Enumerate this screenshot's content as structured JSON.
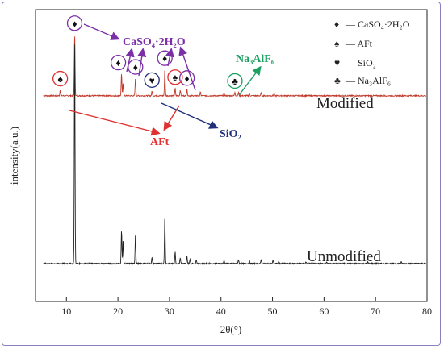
{
  "chart_data": {
    "type": "line",
    "xlabel": "2θ(°)",
    "ylabel": "intensity(a.u.)",
    "xlim": [
      4,
      80
    ],
    "x_ticks": [
      10,
      20,
      30,
      40,
      50,
      60,
      70,
      80
    ],
    "grid": false,
    "legend_position": "top-right",
    "series": [
      {
        "name": "Modified",
        "color": "#c0392b",
        "baseline": 0.705,
        "peaks": [
          {
            "x": 8.8,
            "h": 0.02
          },
          {
            "x": 11.6,
            "h": 0.21
          },
          {
            "x": 20.7,
            "h": 0.075
          },
          {
            "x": 21.0,
            "h": 0.045
          },
          {
            "x": 23.4,
            "h": 0.06
          },
          {
            "x": 26.6,
            "h": 0.015
          },
          {
            "x": 29.1,
            "h": 0.09
          },
          {
            "x": 31.1,
            "h": 0.025
          },
          {
            "x": 32.1,
            "h": 0.02
          },
          {
            "x": 33.4,
            "h": 0.022
          },
          {
            "x": 36.0,
            "h": 0.012
          },
          {
            "x": 40.6,
            "h": 0.01
          },
          {
            "x": 42.7,
            "h": 0.012
          },
          {
            "x": 43.4,
            "h": 0.012
          },
          {
            "x": 45.5,
            "h": 0.008
          },
          {
            "x": 47.8,
            "h": 0.01
          },
          {
            "x": 50.3,
            "h": 0.008
          }
        ]
      },
      {
        "name": "Unmodified",
        "color": "#222222",
        "baseline": 0.13,
        "peaks": [
          {
            "x": 11.6,
            "h": 0.78
          },
          {
            "x": 20.7,
            "h": 0.115
          },
          {
            "x": 21.0,
            "h": 0.08
          },
          {
            "x": 23.4,
            "h": 0.1
          },
          {
            "x": 26.6,
            "h": 0.02
          },
          {
            "x": 29.1,
            "h": 0.16
          },
          {
            "x": 31.1,
            "h": 0.04
          },
          {
            "x": 32.1,
            "h": 0.02
          },
          {
            "x": 33.4,
            "h": 0.025
          },
          {
            "x": 34.0,
            "h": 0.015
          },
          {
            "x": 35.2,
            "h": 0.015
          },
          {
            "x": 40.6,
            "h": 0.012
          },
          {
            "x": 43.4,
            "h": 0.014
          },
          {
            "x": 45.5,
            "h": 0.01
          },
          {
            "x": 47.8,
            "h": 0.014
          },
          {
            "x": 50.1,
            "h": 0.012
          },
          {
            "x": 51.2,
            "h": 0.008
          },
          {
            "x": 56.5,
            "h": 0.006
          },
          {
            "x": 60.5,
            "h": 0.006
          },
          {
            "x": 68.5,
            "h": 0.005
          },
          {
            "x": 75.0,
            "h": 0.005
          }
        ]
      }
    ],
    "curve_labels": {
      "modified": "Modified",
      "unmodified": "Unmodified"
    },
    "legend": [
      {
        "symbol": "♦",
        "label": "— CaSO₄·2H₂O"
      },
      {
        "symbol": "♠",
        "label": "— AFt"
      },
      {
        "symbol": "♥",
        "label": "— SiO₂"
      },
      {
        "symbol": "♣",
        "label": "— Na₃AlF₆"
      }
    ],
    "annotations": [
      {
        "label": "CaSO₄·2H₂O",
        "color": "#7b2fa6"
      },
      {
        "label": "AFt",
        "color": "#e03030"
      },
      {
        "label": "SiO₂",
        "color": "#1f2f7a"
      },
      {
        "label": "Na₃AlF₆",
        "color": "#1aa060"
      }
    ],
    "peak_markers": [
      {
        "symbol": "♦",
        "x": 11.6
      },
      {
        "symbol": "♦",
        "x": 20.7
      },
      {
        "symbol": "♦",
        "x": 23.4
      },
      {
        "symbol": "♦",
        "x": 29.1
      },
      {
        "symbol": "♦",
        "x": 33.4
      },
      {
        "symbol": "♠",
        "x": 8.8
      },
      {
        "symbol": "♠",
        "x": 31.1
      },
      {
        "symbol": "♥",
        "x": 26.6
      },
      {
        "symbol": "♣",
        "x": 42.7
      }
    ]
  }
}
